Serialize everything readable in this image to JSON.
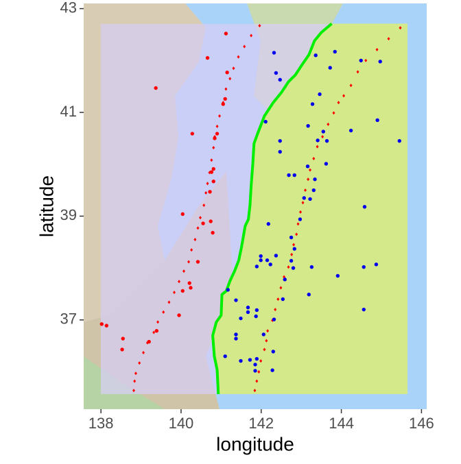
{
  "chart_data": {
    "type": "scatter",
    "x_label": "longitude",
    "y_label": "latitude",
    "xlim": [
      137.57,
      146.13
    ],
    "ylim": [
      35.28,
      43.1
    ],
    "xticks": [
      138,
      140,
      142,
      144,
      146
    ],
    "yticks": [
      37,
      39,
      41,
      43
    ],
    "series": [
      {
        "color": "#00ee00",
        "style": "line",
        "x": [
          143.76,
          143.5,
          143.33,
          143.19,
          143.02,
          142.85,
          142.68,
          142.51,
          142.3,
          142.08,
          141.91,
          141.82,
          141.79,
          141.75,
          141.72,
          141.68,
          141.6,
          141.51,
          141.44,
          141.34,
          141.22,
          141.13,
          141.02,
          141.0,
          140.88,
          140.79,
          140.83,
          140.9,
          140.93
        ],
        "values": [
          42.71,
          42.54,
          42.38,
          42.11,
          41.92,
          41.72,
          41.59,
          41.39,
          41.19,
          40.93,
          40.59,
          40.4,
          40.0,
          39.6,
          39.21,
          38.94,
          38.81,
          38.41,
          38.15,
          37.95,
          37.75,
          37.56,
          37.49,
          37.09,
          36.96,
          36.7,
          36.3,
          36.04,
          35.57
        ]
      },
      {
        "color": "#ff0000",
        "style": "diamond",
        "x": [
          145.47,
          145.18,
          144.89,
          144.61,
          144.41,
          144.24,
          144.06,
          143.93,
          143.81,
          143.67,
          143.53,
          143.4,
          143.31,
          143.22,
          143.17,
          143.1,
          143.04,
          142.98,
          142.92,
          142.88,
          142.81,
          142.76,
          142.68,
          142.57,
          142.49,
          142.42,
          142.35,
          142.28,
          142.16,
          142.13,
          142.08,
          141.99,
          141.94,
          141.89,
          141.84,
          141.96,
          141.75,
          141.58,
          141.43,
          141.31,
          141.22,
          141.12,
          141.05,
          140.96,
          140.9,
          140.84,
          140.81,
          140.76,
          140.71,
          140.66,
          140.62,
          140.57,
          140.48,
          140.42,
          140.35,
          140.26,
          140.19,
          140.07,
          139.95,
          139.83,
          139.7,
          139.56,
          139.42,
          139.32,
          139.16,
          139.06,
          138.96,
          138.87,
          138.84,
          138.82
        ],
        "values": [
          42.63,
          42.42,
          42.21,
          42.0,
          41.78,
          41.52,
          41.32,
          41.19,
          40.99,
          40.77,
          40.53,
          40.34,
          40.11,
          39.89,
          39.71,
          39.5,
          39.26,
          39.08,
          38.85,
          38.65,
          38.45,
          38.26,
          38.02,
          37.83,
          37.62,
          37.4,
          37.2,
          36.99,
          36.79,
          36.6,
          36.43,
          36.21,
          36.0,
          35.82,
          35.64,
          42.67,
          42.48,
          42.27,
          42.07,
          41.85,
          41.65,
          41.45,
          41.19,
          40.93,
          40.73,
          40.53,
          40.32,
          40.08,
          39.84,
          39.63,
          39.45,
          39.21,
          38.97,
          38.77,
          38.55,
          38.35,
          38.12,
          37.94,
          37.74,
          37.53,
          37.34,
          37.15,
          36.96,
          36.76,
          36.56,
          36.37,
          36.17,
          35.97,
          35.82,
          35.64
        ]
      },
      {
        "color": "#ff0000",
        "style": "circle",
        "x": [
          141.12,
          140.66,
          141.15,
          139.37,
          141.1,
          141.05,
          140.28,
          140.9,
          140.84,
          140.81,
          140.76,
          140.81,
          140.72,
          140.04,
          140.55,
          140.74,
          140.79,
          140.42,
          140.21,
          140.24,
          140.04,
          139.95,
          139.39,
          139.2,
          138.53,
          138.55,
          138.02,
          138.14
        ],
        "values": [
          42.52,
          42.05,
          41.77,
          41.47,
          41.26,
          41.16,
          40.59,
          40.59,
          40.5,
          39.91,
          39.85,
          39.67,
          39.47,
          39.04,
          38.86,
          38.9,
          38.68,
          38.12,
          37.71,
          37.62,
          37.56,
          37.09,
          36.79,
          36.58,
          36.43,
          36.64,
          36.92,
          36.89
        ]
      },
      {
        "color": "#0000ee",
        "style": "circle",
        "x": [
          142.32,
          142.37,
          142.47,
          143.36,
          143.84,
          143.72,
          144.49,
          143.28,
          143.46,
          144.24,
          144.9,
          145.45,
          143.17,
          143.55,
          143.41,
          143.64,
          142.11,
          142.47,
          142.47,
          143.16,
          143.62,
          143.34,
          142.69,
          142.83,
          143.31,
          143.22,
          143.07,
          142.97,
          142.18,
          142.75,
          142.83,
          142.75,
          141.99,
          141.99,
          142.15,
          142.37,
          142.23,
          141.89,
          142.8,
          143.26,
          143.91,
          144.56,
          144.87,
          142.59,
          142.54,
          143.19,
          141.37,
          141.17,
          141.67,
          141.67,
          141.49,
          141.89,
          141.87,
          142.32,
          144.56,
          144.58,
          142.06,
          142.3,
          141.37,
          141.37,
          141.1,
          141.49,
          141.72,
          141.89,
          141.85,
          142.28,
          141.85,
          144.97
        ],
        "values": [
          42.15,
          41.76,
          41.63,
          42.1,
          42.17,
          41.86,
          42.0,
          41.16,
          41.35,
          40.65,
          40.85,
          40.45,
          40.74,
          40.63,
          40.46,
          40.45,
          40.82,
          40.45,
          40.24,
          39.96,
          40.01,
          39.71,
          39.79,
          39.79,
          39.5,
          39.33,
          39.35,
          38.94,
          38.85,
          38.59,
          38.37,
          38.14,
          38.23,
          38.15,
          38.15,
          38.24,
          38.07,
          38.03,
          38.0,
          38.02,
          37.85,
          38.02,
          38.07,
          37.78,
          37.4,
          37.49,
          37.38,
          37.58,
          37.24,
          37.15,
          37.03,
          37.19,
          37.07,
          37.01,
          37.2,
          39.18,
          36.72,
          36.39,
          36.72,
          36.64,
          36.3,
          36.21,
          36.23,
          36.25,
          36.02,
          36.03,
          36.14,
          41.98
        ]
      }
    ]
  }
}
